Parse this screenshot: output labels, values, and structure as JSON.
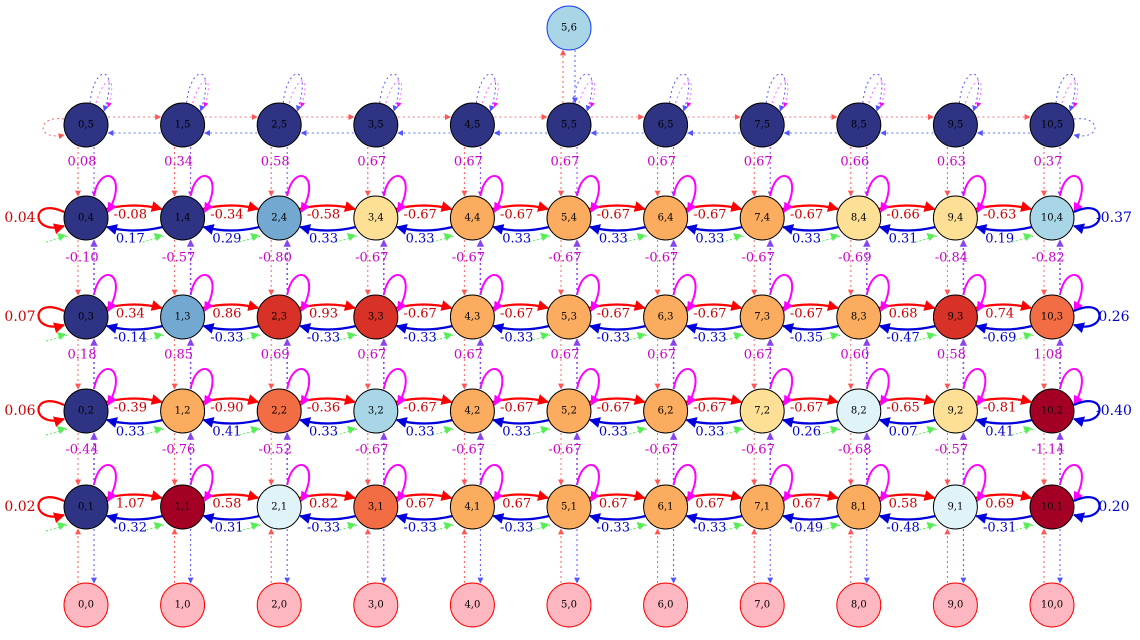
{
  "colors": {
    "navy": "#2e3483",
    "steel": "#73a8d0",
    "cream": "#fedf96",
    "orange": "#fbac5f",
    "red": "#d73128",
    "lightblue": "#a8d6e6",
    "coral": "#f36d44",
    "darkred": "#a40026",
    "pale": "#e0f3f8",
    "pink": "#fdb7c0",
    "nodeStroke": "#000000",
    "topStroke": "#1b3df0",
    "pinkStroke": "#ff0000",
    "redEdge": "#ff0000",
    "blueEdge": "#0000dd",
    "magenta": "#ff00ff",
    "violet": "#9955ee",
    "green": "#55ee55",
    "blueLbl": "#0000cc",
    "redLbl": "#cc0000",
    "magLbl": "#cc00cc"
  },
  "top_node": {
    "label": "5,6",
    "color": "lightblue"
  },
  "rows": [
    {
      "y": 5,
      "nodes": [
        {
          "label": "0,5",
          "color": "navy"
        },
        {
          "label": "1,5",
          "color": "navy"
        },
        {
          "label": "2,5",
          "color": "navy"
        },
        {
          "label": "3,5",
          "color": "navy"
        },
        {
          "label": "4,5",
          "color": "navy"
        },
        {
          "label": "5,5",
          "color": "navy"
        },
        {
          "label": "6,5",
          "color": "navy"
        },
        {
          "label": "7,5",
          "color": "navy"
        },
        {
          "label": "8,5",
          "color": "navy"
        },
        {
          "label": "9,5",
          "color": "navy"
        },
        {
          "label": "10,5",
          "color": "navy"
        }
      ]
    },
    {
      "y": 4,
      "nodes": [
        {
          "label": "0,4",
          "color": "navy"
        },
        {
          "label": "1,4",
          "color": "navy"
        },
        {
          "label": "2,4",
          "color": "steel"
        },
        {
          "label": "3,4",
          "color": "cream"
        },
        {
          "label": "4,4",
          "color": "orange"
        },
        {
          "label": "5,4",
          "color": "orange"
        },
        {
          "label": "6,4",
          "color": "orange"
        },
        {
          "label": "7,4",
          "color": "orange"
        },
        {
          "label": "8,4",
          "color": "cream"
        },
        {
          "label": "9,4",
          "color": "cream"
        },
        {
          "label": "10,4",
          "color": "lightblue"
        }
      ],
      "right": [
        "-0.08",
        "-0.34",
        "-0.58",
        "-0.67",
        "-0.67",
        "-0.67",
        "-0.67",
        "-0.67",
        "-0.66",
        "-0.63"
      ],
      "left": [
        "0.17",
        "0.29",
        "0.33",
        "0.33",
        "0.33",
        "0.33",
        "0.33",
        "0.33",
        "0.31",
        "0.19"
      ],
      "self_left": "0.04",
      "self_right": "-0.37",
      "up": [
        "0.08",
        "0.34",
        "0.58",
        "0.67",
        "0.67",
        "0.67",
        "0.67",
        "0.67",
        "0.66",
        "0.63",
        "0.37"
      ],
      "down": [
        "-0.10",
        "-0.57",
        "-0.80",
        "-0.67",
        "-0.67",
        "-0.67",
        "-0.67",
        "-0.67",
        "-0.69",
        "-0.84",
        "-0.82"
      ]
    },
    {
      "y": 3,
      "nodes": [
        {
          "label": "0,3",
          "color": "navy"
        },
        {
          "label": "1,3",
          "color": "steel"
        },
        {
          "label": "2,3",
          "color": "red"
        },
        {
          "label": "3,3",
          "color": "red"
        },
        {
          "label": "4,3",
          "color": "orange"
        },
        {
          "label": "5,3",
          "color": "orange"
        },
        {
          "label": "6,3",
          "color": "orange"
        },
        {
          "label": "7,3",
          "color": "orange"
        },
        {
          "label": "8,3",
          "color": "orange"
        },
        {
          "label": "9,3",
          "color": "red"
        },
        {
          "label": "10,3",
          "color": "coral"
        }
      ],
      "right": [
        "0.34",
        "0.86",
        "0.93",
        "-0.67",
        "-0.67",
        "-0.67",
        "-0.67",
        "-0.67",
        "0.68",
        "0.74"
      ],
      "left": [
        "-0.14",
        "-0.33",
        "-0.33",
        "-0.33",
        "-0.33",
        "-0.33",
        "-0.33",
        "-0.35",
        "-0.47",
        "-0.69"
      ],
      "self_left": "0.07",
      "self_right": "0.26",
      "down": [
        "0.18",
        "0.85",
        "0.69",
        "0.67",
        "0.67",
        "0.67",
        "0.67",
        "0.67",
        "0.60",
        "0.58",
        "1.08"
      ]
    },
    {
      "y": 2,
      "nodes": [
        {
          "label": "0,2",
          "color": "navy"
        },
        {
          "label": "1,2",
          "color": "orange"
        },
        {
          "label": "2,2",
          "color": "coral"
        },
        {
          "label": "3,2",
          "color": "lightblue"
        },
        {
          "label": "4,2",
          "color": "orange"
        },
        {
          "label": "5,2",
          "color": "orange"
        },
        {
          "label": "6,2",
          "color": "orange"
        },
        {
          "label": "7,2",
          "color": "cream"
        },
        {
          "label": "8,2",
          "color": "pale"
        },
        {
          "label": "9,2",
          "color": "cream"
        },
        {
          "label": "10,2",
          "color": "darkred"
        }
      ],
      "right": [
        "-0.39",
        "-0.90",
        "-0.36",
        "-0.67",
        "-0.67",
        "-0.67",
        "-0.67",
        "-0.67",
        "-0.65",
        "-0.81"
      ],
      "left": [
        "0.33",
        "0.41",
        "0.33",
        "0.33",
        "0.33",
        "0.33",
        "0.33",
        "0.26",
        "0.07",
        "0.41"
      ],
      "self_left": "0.06",
      "self_right": "-0.40",
      "down": [
        "-0.44",
        "-0.76",
        "-0.52",
        "-0.67",
        "-0.67",
        "-0.67",
        "-0.67",
        "-0.67",
        "-0.68",
        "-0.57",
        "-1.14"
      ]
    },
    {
      "y": 1,
      "nodes": [
        {
          "label": "0,1",
          "color": "navy"
        },
        {
          "label": "1,1",
          "color": "darkred"
        },
        {
          "label": "2,1",
          "color": "pale"
        },
        {
          "label": "3,1",
          "color": "coral"
        },
        {
          "label": "4,1",
          "color": "orange"
        },
        {
          "label": "5,1",
          "color": "orange"
        },
        {
          "label": "6,1",
          "color": "orange"
        },
        {
          "label": "7,1",
          "color": "orange"
        },
        {
          "label": "8,1",
          "color": "orange"
        },
        {
          "label": "9,1",
          "color": "pale"
        },
        {
          "label": "10,1",
          "color": "darkred"
        }
      ],
      "right": [
        "1.07",
        "0.58",
        "0.82",
        "0.67",
        "0.67",
        "0.67",
        "0.67",
        "0.67",
        "0.58",
        "0.69"
      ],
      "left": [
        "-0.32",
        "-0.31",
        "-0.33",
        "-0.33",
        "-0.33",
        "-0.33",
        "-0.33",
        "-0.49",
        "-0.48",
        "-0.31"
      ],
      "self_left": "0.02",
      "self_right": "0.20"
    },
    {
      "y": 0,
      "nodes": [
        {
          "label": "0,0",
          "color": "pink"
        },
        {
          "label": "1,0",
          "color": "pink"
        },
        {
          "label": "2,0",
          "color": "pink"
        },
        {
          "label": "3,0",
          "color": "pink"
        },
        {
          "label": "4,0",
          "color": "pink"
        },
        {
          "label": "5,0",
          "color": "pink"
        },
        {
          "label": "6,0",
          "color": "pink"
        },
        {
          "label": "7,0",
          "color": "pink"
        },
        {
          "label": "8,0",
          "color": "pink"
        },
        {
          "label": "9,0",
          "color": "pink"
        },
        {
          "label": "10,0",
          "color": "pink"
        }
      ]
    }
  ]
}
